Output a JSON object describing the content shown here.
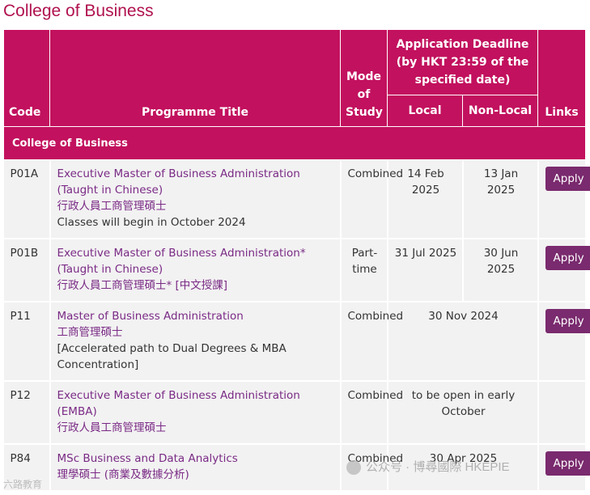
{
  "page_title": "College of Business",
  "headers": {
    "code": "Code",
    "programme_title": "Programme Title",
    "mode_of_study": "Mode of Study",
    "deadline_group": "Application Deadline (by HKT 23:59 of the specified date)",
    "local": "Local",
    "non_local": "Non-Local",
    "links": "Links"
  },
  "section_label": "College of Business",
  "rows": [
    {
      "code": "P01A",
      "title_en": "Executive Master of Business Administration (Taught in Chinese)",
      "title_zh": "行政人員工商管理碩士",
      "note": "Classes will begin in October 2024",
      "mode": "Combined",
      "local": "14 Feb 2025",
      "non_local": "13 Jan 2025",
      "link_label": "Apply"
    },
    {
      "code": "P01B",
      "title_en": "Executive Master of Business Administration* (Taught in Chinese)",
      "title_zh": "行政人員工商管理碩士* [中文授課]",
      "note": "",
      "mode": "Part-time",
      "local": "31 Jul 2025",
      "non_local": "30 Jun 2025",
      "link_label": "Apply"
    },
    {
      "code": "P11",
      "title_en": "Master of Business Administration",
      "title_zh": "工商管理碩士",
      "note": "[Accelerated path to Dual Degrees & MBA Concentration]",
      "mode": "Combined",
      "deadline": "30 Nov 2024",
      "link_label": "Apply"
    },
    {
      "code": "P12",
      "title_en": "Executive Master of Business Administration (EMBA)",
      "title_zh": "行政人員工商管理碩士",
      "note": "",
      "mode": "Combined",
      "deadline": "to be open in early October",
      "link_label": ""
    },
    {
      "code": "P84",
      "title_en": "MSc Business and Data Analytics",
      "title_zh": "理學碩士 (商業及數據分析)",
      "note": "",
      "mode": "Combined",
      "deadline": "30 Apr 2025",
      "link_label": "Apply"
    }
  ],
  "watermark": {
    "main": "公众号 · 博尋國際 HKEPIE",
    "corner": "六路教育"
  },
  "colors": {
    "title": "#b0124f",
    "header_bg": "#c2115e",
    "link": "#7a2a85",
    "button": "#7a2a6e",
    "row_bg": "#f2f2f2"
  }
}
